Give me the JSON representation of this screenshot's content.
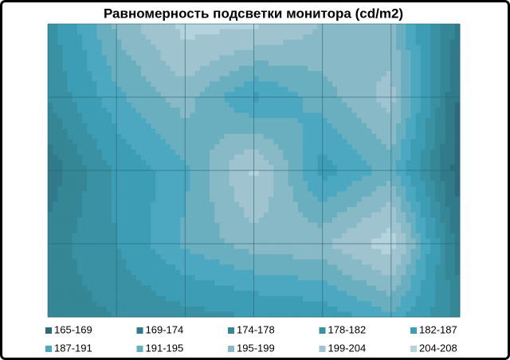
{
  "chart_data": {
    "type": "contour",
    "title": "Равномерность  подсветки монитора  (cd/m2)",
    "z": [
      [
        180,
        196,
        206,
        205,
        199,
        196,
        172
      ],
      [
        178,
        190,
        197,
        186,
        193,
        201,
        168
      ],
      [
        171,
        183,
        190,
        205,
        185,
        193,
        166
      ],
      [
        176,
        182,
        192,
        197,
        198,
        207,
        171
      ],
      [
        176,
        178,
        180,
        182,
        184,
        190,
        176
      ]
    ],
    "levels": [
      165,
      169,
      174,
      178,
      182,
      187,
      191,
      195,
      199,
      204,
      208
    ],
    "bands": [
      {
        "name": "165-169",
        "color": "#2c6b7c"
      },
      {
        "name": "169-174",
        "color": "#317a8b"
      },
      {
        "name": "174-178",
        "color": "#358796"
      },
      {
        "name": "178-182",
        "color": "#3991a3"
      },
      {
        "name": "182-187",
        "color": "#3c9db5"
      },
      {
        "name": "187-191",
        "color": "#4ca8c0"
      },
      {
        "name": "191-195",
        "color": "#6aafc0"
      },
      {
        "name": "195-199",
        "color": "#88b9c6"
      },
      {
        "name": "199-204",
        "color": "#a0c4cf"
      },
      {
        "name": "204-208",
        "color": "#b5d3dc"
      }
    ]
  }
}
